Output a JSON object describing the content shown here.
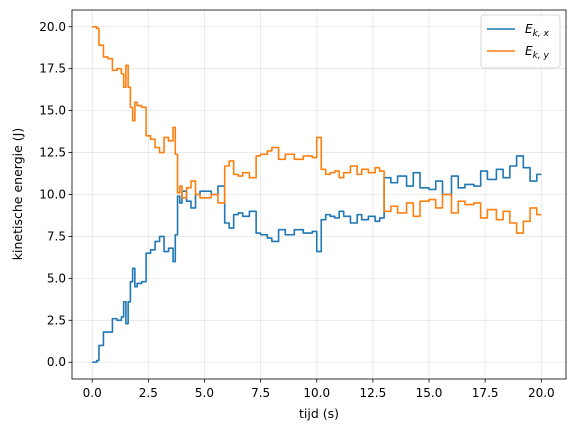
{
  "chart_data": {
    "type": "line",
    "title": "",
    "xlabel": "tijd (s)",
    "ylabel": "kinetische energie (J)",
    "xlim": [
      -0.9,
      21.1
    ],
    "ylim": [
      -1.0,
      21.0
    ],
    "xticks": [
      0.0,
      2.5,
      5.0,
      7.5,
      10.0,
      12.5,
      15.0,
      17.5,
      20.0
    ],
    "xtick_labels": [
      "0.0",
      "2.5",
      "5.0",
      "7.5",
      "10.0",
      "12.5",
      "15.0",
      "17.5",
      "20.0"
    ],
    "yticks": [
      0.0,
      2.5,
      5.0,
      7.5,
      10.0,
      12.5,
      15.0,
      17.5,
      20.0
    ],
    "ytick_labels": [
      "0.0",
      "2.5",
      "5.0",
      "7.5",
      "10.0",
      "12.5",
      "15.0",
      "17.5",
      "20.0"
    ],
    "grid": true,
    "legend_position": "top-right",
    "series": [
      {
        "name": "E",
        "name_sub": "k, x",
        "color": "#1f77b4",
        "x": [
          0.0,
          0.2,
          0.3,
          0.5,
          0.7,
          0.9,
          1.1,
          1.3,
          1.4,
          1.5,
          1.6,
          1.7,
          1.8,
          1.9,
          2.0,
          2.1,
          2.2,
          2.4,
          2.6,
          2.8,
          3.0,
          3.2,
          3.4,
          3.6,
          3.7,
          3.8,
          3.9,
          4.0,
          4.2,
          4.4,
          4.6,
          4.8,
          5.0,
          5.3,
          5.6,
          5.9,
          6.1,
          6.3,
          6.5,
          6.7,
          7.0,
          7.3,
          7.5,
          7.8,
          8.0,
          8.3,
          8.6,
          9.0,
          9.4,
          9.8,
          10.0,
          10.2,
          10.4,
          10.6,
          10.8,
          11.0,
          11.2,
          11.5,
          11.8,
          12.0,
          12.3,
          12.6,
          12.8,
          13.0,
          13.3,
          13.6,
          14.0,
          14.3,
          14.6,
          15.0,
          15.3,
          15.6,
          16.0,
          16.3,
          16.6,
          17.0,
          17.3,
          17.6,
          18.0,
          18.3,
          18.6,
          18.9,
          19.2,
          19.5,
          19.8,
          20.0
        ],
        "y": [
          0.0,
          0.1,
          1.0,
          1.8,
          1.8,
          2.6,
          2.5,
          2.7,
          3.6,
          2.3,
          3.6,
          4.8,
          5.6,
          4.5,
          4.7,
          4.7,
          4.8,
          6.5,
          6.7,
          7.2,
          7.5,
          6.6,
          6.8,
          6.0,
          7.6,
          9.9,
          9.5,
          10.2,
          9.6,
          9.2,
          10.0,
          10.2,
          10.2,
          10.0,
          10.5,
          8.3,
          8.0,
          8.8,
          8.9,
          8.7,
          9.0,
          7.7,
          7.6,
          7.4,
          7.2,
          7.9,
          7.6,
          7.9,
          7.7,
          7.8,
          6.6,
          8.5,
          8.8,
          8.7,
          8.6,
          9.0,
          8.7,
          8.3,
          8.8,
          8.5,
          8.7,
          8.4,
          8.6,
          11.0,
          10.7,
          11.1,
          10.5,
          11.3,
          10.4,
          10.3,
          10.8,
          10.0,
          11.1,
          10.4,
          10.6,
          10.5,
          11.4,
          10.9,
          11.5,
          11.0,
          11.7,
          12.3,
          11.6,
          10.8,
          11.2,
          11.2
        ]
      },
      {
        "name": "E",
        "name_sub": "k, y",
        "color": "#ff7f0e",
        "x": [
          0.0,
          0.2,
          0.3,
          0.5,
          0.7,
          0.9,
          1.1,
          1.3,
          1.4,
          1.5,
          1.6,
          1.7,
          1.8,
          1.9,
          2.0,
          2.1,
          2.2,
          2.4,
          2.6,
          2.8,
          3.0,
          3.2,
          3.4,
          3.6,
          3.7,
          3.8,
          3.9,
          4.0,
          4.2,
          4.4,
          4.6,
          4.8,
          5.0,
          5.3,
          5.6,
          5.9,
          6.1,
          6.3,
          6.5,
          6.7,
          7.0,
          7.3,
          7.5,
          7.8,
          8.0,
          8.3,
          8.6,
          9.0,
          9.4,
          9.8,
          10.0,
          10.2,
          10.4,
          10.6,
          10.8,
          11.0,
          11.2,
          11.5,
          11.8,
          12.0,
          12.3,
          12.6,
          12.8,
          13.0,
          13.3,
          13.6,
          14.0,
          14.3,
          14.6,
          15.0,
          15.3,
          15.6,
          16.0,
          16.3,
          16.6,
          17.0,
          17.3,
          17.6,
          18.0,
          18.3,
          18.6,
          18.9,
          19.2,
          19.5,
          19.8,
          20.0
        ],
        "y": [
          20.0,
          19.9,
          18.9,
          18.2,
          18.1,
          17.4,
          17.5,
          17.2,
          16.4,
          17.7,
          16.4,
          15.2,
          14.4,
          15.5,
          15.3,
          15.3,
          15.2,
          13.5,
          13.3,
          12.8,
          12.5,
          13.4,
          13.2,
          14.0,
          12.4,
          10.1,
          10.5,
          9.8,
          10.4,
          10.8,
          10.0,
          9.8,
          9.8,
          10.0,
          9.5,
          11.7,
          12.0,
          11.2,
          11.1,
          11.3,
          11.0,
          12.3,
          12.4,
          12.6,
          12.8,
          12.1,
          12.4,
          12.1,
          12.3,
          12.2,
          13.4,
          11.5,
          11.2,
          11.3,
          11.4,
          11.0,
          11.3,
          11.7,
          11.2,
          11.5,
          11.3,
          11.6,
          11.4,
          9.0,
          9.3,
          8.9,
          9.5,
          8.7,
          9.6,
          9.7,
          9.2,
          10.0,
          8.9,
          9.6,
          9.4,
          9.5,
          8.6,
          9.1,
          8.5,
          9.0,
          8.3,
          7.7,
          8.4,
          9.2,
          8.8,
          8.8
        ]
      }
    ]
  }
}
